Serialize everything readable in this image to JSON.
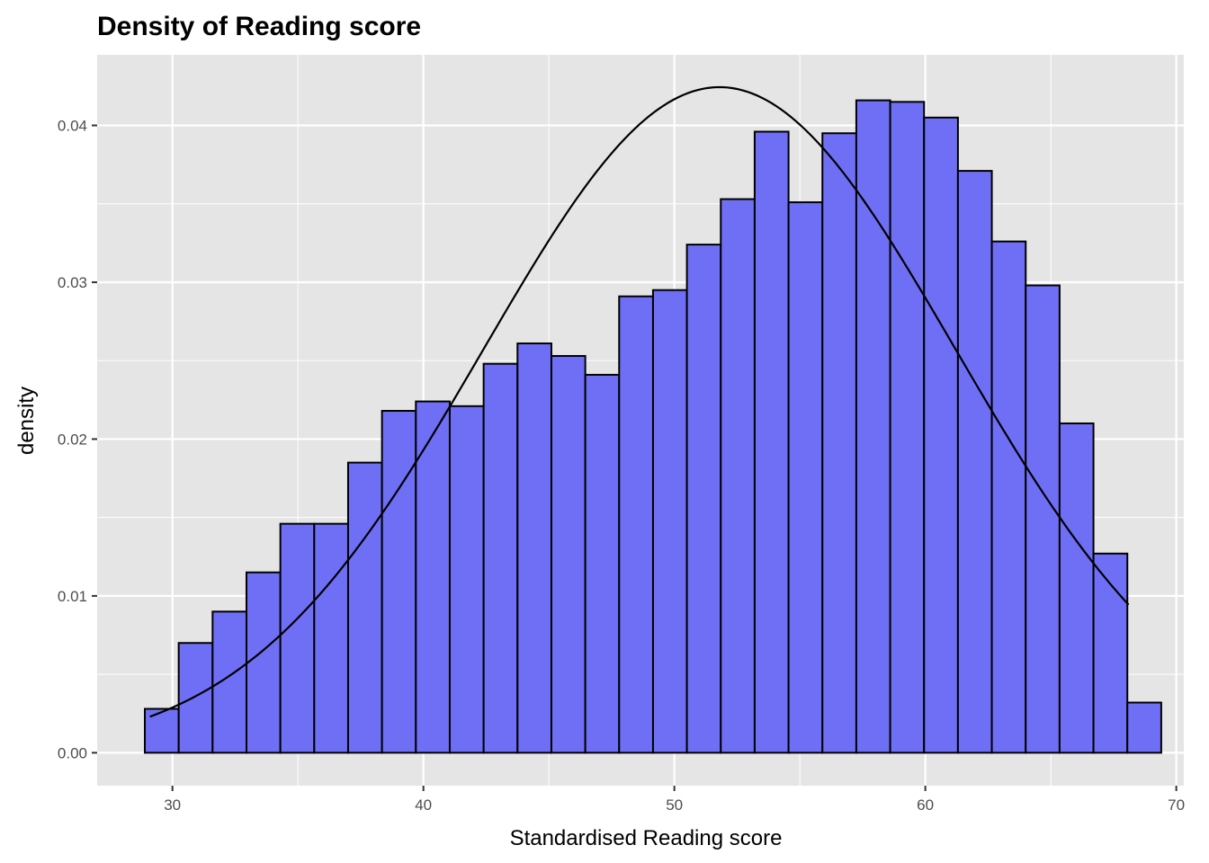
{
  "chart_data": {
    "type": "bar",
    "title": "Density of Reading score",
    "xlabel": "Standardised Reading score",
    "ylabel": "density",
    "xlim": [
      27.0,
      70.3
    ],
    "ylim": [
      -0.0021,
      0.0445
    ],
    "x_ticks": [
      30,
      40,
      50,
      60,
      70
    ],
    "x_tick_labels": [
      "30",
      "40",
      "50",
      "60",
      "70"
    ],
    "y_ticks": [
      0.0,
      0.01,
      0.02,
      0.03,
      0.04
    ],
    "y_tick_labels": [
      "0.00",
      "0.01",
      "0.02",
      "0.03",
      "0.04"
    ],
    "grid": true,
    "legend": "none",
    "bin_start": 28.9,
    "bin_width": 1.35,
    "values": [
      0.0028,
      0.007,
      0.009,
      0.0115,
      0.0146,
      0.0146,
      0.0185,
      0.0218,
      0.0224,
      0.0221,
      0.0248,
      0.0261,
      0.0253,
      0.0241,
      0.0291,
      0.0295,
      0.0324,
      0.0353,
      0.0396,
      0.0351,
      0.0395,
      0.0416,
      0.0415,
      0.0405,
      0.0371,
      0.0326,
      0.0298,
      0.021,
      0.0127,
      0.0032
    ],
    "normal_curve": {
      "mean": 51.8,
      "sd": 9.4,
      "x_range": [
        29.1,
        68.1
      ]
    },
    "colors": {
      "bar_fill": "#6f6ff5",
      "bar_stroke": "#000000",
      "curve": "#000000",
      "panel_bg": "#e5e5e5",
      "grid": "#ffffff"
    }
  }
}
